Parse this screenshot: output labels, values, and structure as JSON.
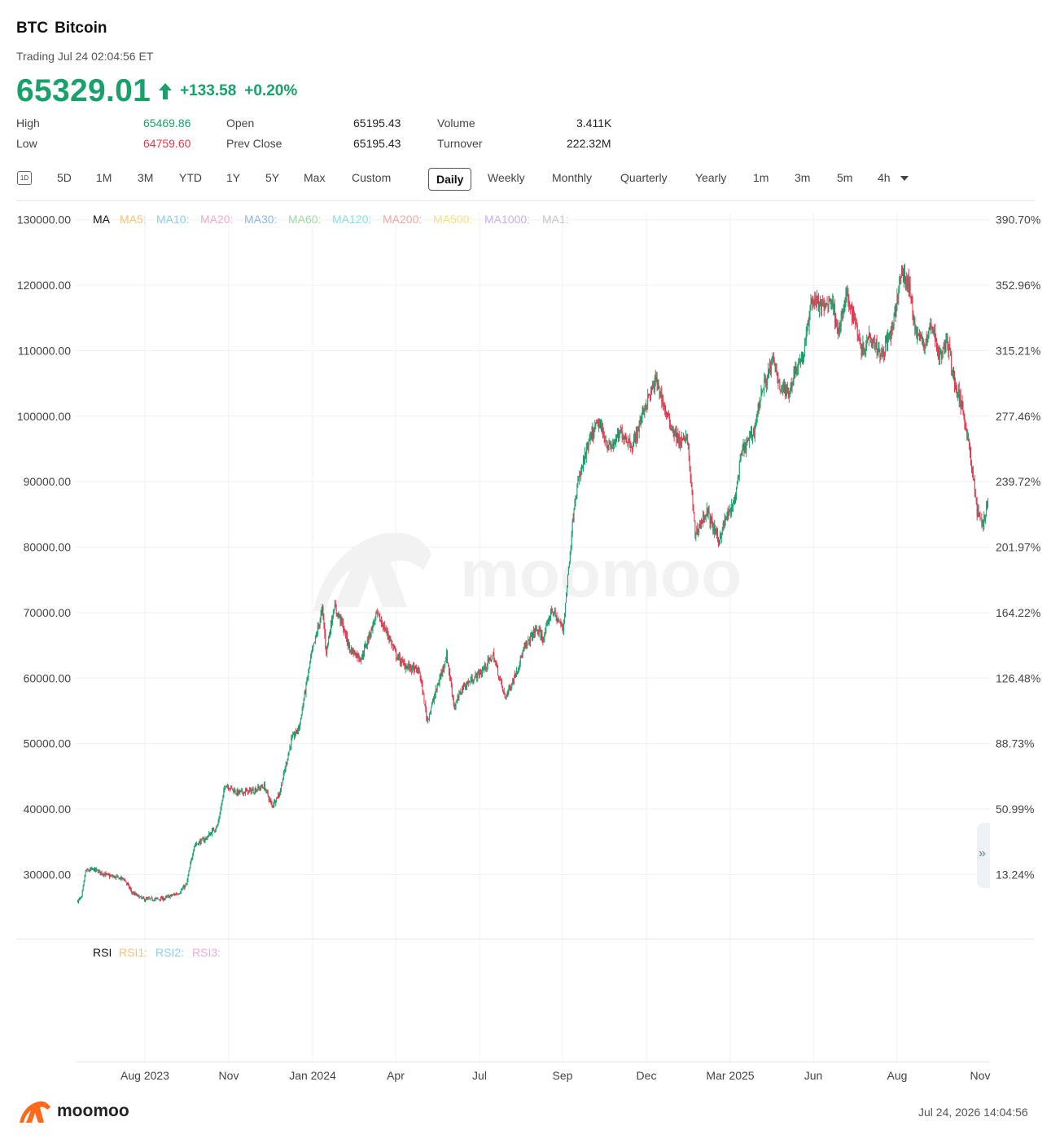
{
  "header": {
    "ticker": "BTC",
    "name": "Bitcoin",
    "status": "Trading Jul 24 02:04:56 ET",
    "price": "65329.01",
    "change": "+133.58",
    "change_pct": "+0.20%"
  },
  "stats": [
    {
      "label": "High",
      "value": "65469.86",
      "tone": "green"
    },
    {
      "label": "Low",
      "value": "64759.60",
      "tone": "red"
    },
    {
      "label": "Open",
      "value": "65195.43",
      "tone": "plain"
    },
    {
      "label": "Prev Close",
      "value": "65195.43",
      "tone": "plain"
    },
    {
      "label": "Volume",
      "value": "3.411K",
      "tone": "plain"
    },
    {
      "label": "Turnover",
      "value": "222.32M",
      "tone": "plain"
    }
  ],
  "periods": {
    "icon_1d": "1D",
    "items": [
      "5D",
      "1M",
      "3M",
      "YTD",
      "1Y",
      "5Y",
      "Max",
      "Custom",
      "Daily",
      "Weekly",
      "Monthly",
      "Quarterly",
      "Yearly",
      "1m",
      "3m",
      "5m",
      "4h"
    ],
    "active": "Daily"
  },
  "legend": {
    "ma_title": "MA",
    "ma_items": [
      "MA5:",
      "MA10:",
      "MA20:",
      "MA30:",
      "MA60:",
      "MA120:",
      "MA200:",
      "MA500:",
      "MA1000:",
      "MA1:"
    ],
    "ma_colors": [
      "#f5c27a",
      "#8ad0ea",
      "#f3a9cf",
      "#8ab8e6",
      "#9fd9a9",
      "#7fe3e6",
      "#f4a6a6",
      "#f6df7b",
      "#c8b0ec",
      "#c6c6c6"
    ],
    "rsi_title": "RSI",
    "rsi_items": [
      "RSI1:",
      "RSI2:",
      "RSI3:"
    ],
    "rsi_colors": [
      "#f5c27a",
      "#8ad0ea",
      "#f3a9cf"
    ]
  },
  "colors": {
    "up": "#1aa06a",
    "down": "#e0384f",
    "grid": "#f0f0f0",
    "watermark": "#f2f2f2"
  },
  "watermark": "moomoo",
  "footer": {
    "logo_text": "moomoo",
    "timestamp": "Jul 24, 2026 14:04:56"
  },
  "chart_data": {
    "type": "candlestick",
    "y_left_ticks": [
      "130000.00",
      "120000.00",
      "110000.00",
      "100000.00",
      "90000.00",
      "80000.00",
      "70000.00",
      "60000.00",
      "50000.00",
      "40000.00",
      "30000.00"
    ],
    "y_right_ticks": [
      "390.70%",
      "352.96%",
      "315.21%",
      "277.46%",
      "239.72%",
      "201.97%",
      "164.22%",
      "126.48%",
      "88.73%",
      "50.99%",
      "13.24%"
    ],
    "ylim": [
      20000,
      131000
    ],
    "x_ticks": [
      "Aug 2023",
      "Nov",
      "Jan 2024",
      "Apr",
      "Jul",
      "Sep",
      "Dec",
      "Mar 2025",
      "Jun",
      "Aug",
      "Nov"
    ],
    "grid": true,
    "series": [
      {
        "anchors": [
          [
            0,
            26000
          ],
          [
            5,
            26500
          ],
          [
            10,
            30500
          ],
          [
            20,
            30800
          ],
          [
            40,
            29800
          ],
          [
            60,
            29300
          ],
          [
            70,
            27200
          ],
          [
            85,
            26200
          ],
          [
            110,
            26300
          ],
          [
            130,
            27200
          ],
          [
            140,
            28500
          ],
          [
            150,
            34500
          ],
          [
            165,
            35500
          ],
          [
            180,
            37500
          ],
          [
            190,
            43800
          ],
          [
            205,
            42500
          ],
          [
            225,
            42800
          ],
          [
            240,
            43500
          ],
          [
            250,
            40500
          ],
          [
            260,
            42500
          ],
          [
            275,
            50500
          ],
          [
            285,
            52500
          ],
          [
            300,
            63000
          ],
          [
            315,
            70500
          ],
          [
            320,
            64000
          ],
          [
            330,
            71000
          ],
          [
            340,
            68500
          ],
          [
            350,
            64500
          ],
          [
            365,
            63000
          ],
          [
            385,
            69800
          ],
          [
            400,
            66500
          ],
          [
            410,
            63500
          ],
          [
            420,
            62000
          ],
          [
            440,
            61000
          ],
          [
            450,
            53500
          ],
          [
            465,
            59500
          ],
          [
            475,
            63500
          ],
          [
            485,
            55500
          ],
          [
            495,
            58500
          ],
          [
            520,
            61000
          ],
          [
            535,
            63500
          ],
          [
            550,
            57000
          ],
          [
            560,
            59500
          ],
          [
            575,
            64500
          ],
          [
            590,
            67500
          ],
          [
            600,
            66000
          ],
          [
            610,
            70500
          ],
          [
            625,
            67500
          ],
          [
            640,
            87500
          ],
          [
            650,
            92500
          ],
          [
            660,
            96500
          ],
          [
            670,
            99000
          ],
          [
            685,
            95000
          ],
          [
            700,
            97500
          ],
          [
            715,
            95500
          ],
          [
            730,
            101500
          ],
          [
            745,
            105500
          ],
          [
            760,
            99500
          ],
          [
            775,
            96000
          ],
          [
            785,
            96500
          ],
          [
            795,
            82000
          ],
          [
            810,
            85500
          ],
          [
            825,
            81000
          ],
          [
            835,
            84500
          ],
          [
            845,
            86500
          ],
          [
            855,
            94500
          ],
          [
            870,
            97500
          ],
          [
            880,
            103500
          ],
          [
            895,
            108500
          ],
          [
            905,
            104500
          ],
          [
            915,
            103500
          ],
          [
            925,
            107500
          ],
          [
            935,
            109500
          ],
          [
            945,
            118000
          ],
          [
            960,
            116500
          ],
          [
            970,
            118000
          ],
          [
            980,
            113000
          ],
          [
            990,
            118500
          ],
          [
            1000,
            115000
          ],
          [
            1010,
            110000
          ],
          [
            1020,
            112500
          ],
          [
            1035,
            109500
          ],
          [
            1050,
            113500
          ],
          [
            1060,
            122000
          ],
          [
            1070,
            120000
          ],
          [
            1080,
            112500
          ],
          [
            1090,
            111000
          ],
          [
            1100,
            114000
          ],
          [
            1110,
            109000
          ],
          [
            1120,
            111500
          ],
          [
            1130,
            104500
          ],
          [
            1140,
            101000
          ],
          [
            1148,
            95500
          ],
          [
            1158,
            85500
          ],
          [
            1165,
            83500
          ],
          [
            1172,
            87000
          ]
        ]
      }
    ]
  }
}
